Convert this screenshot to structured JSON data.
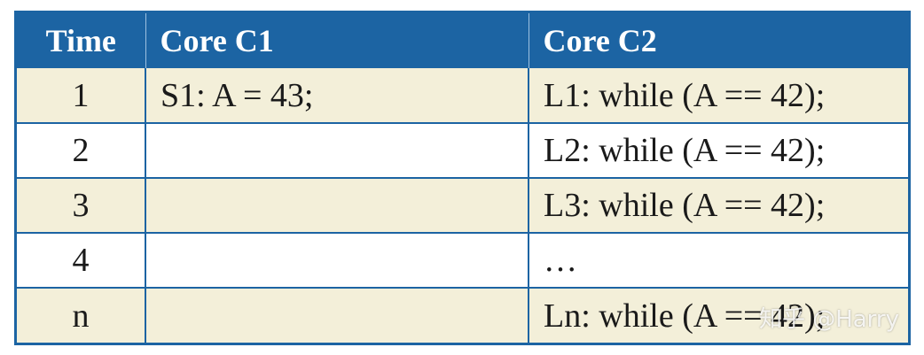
{
  "table": {
    "headers": {
      "time": "Time",
      "core1": "Core C1",
      "core2": "Core C2"
    },
    "rows": [
      {
        "time": "1",
        "core1": "S1: A = 43;",
        "core2": "L1: while (A == 42);"
      },
      {
        "time": "2",
        "core1": "",
        "core2": "L2: while (A == 42);"
      },
      {
        "time": "3",
        "core1": "",
        "core2": "L3: while (A == 42);"
      },
      {
        "time": "4",
        "core1": "",
        "core2": "…"
      },
      {
        "time": "n",
        "core1": "",
        "core2": "Ln: while (A == 42);"
      }
    ]
  },
  "watermark": "知乎 @Harry",
  "colors": {
    "header_bg": "#1c64a3",
    "shaded_row": "#f3efd9",
    "border": "#1c64a3"
  }
}
